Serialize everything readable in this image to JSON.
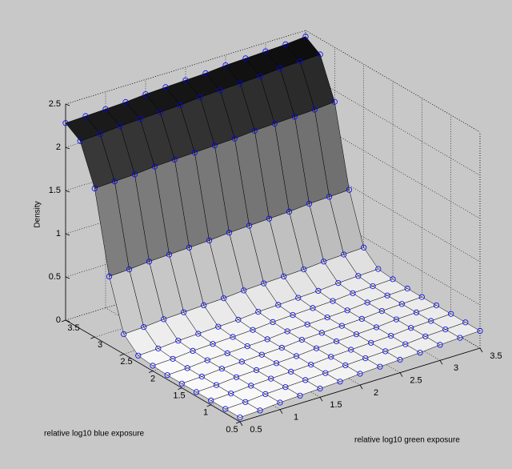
{
  "chart_data": {
    "type": "surface",
    "xlabel": "relative log10 green exposure",
    "ylabel": "relative log10 blue exposure",
    "zlabel": "Density",
    "x": [
      0.5,
      0.75,
      1,
      1.25,
      1.5,
      1.75,
      2,
      2.25,
      2.5,
      2.75,
      3,
      3.25,
      3.5
    ],
    "y": [
      0.5,
      0.75,
      1,
      1.25,
      1.5,
      1.75,
      2,
      2.25,
      2.5,
      2.75,
      3,
      3.25,
      3.5
    ],
    "z": [
      [
        0.05,
        0.06,
        0.08,
        0.09,
        0.1,
        0.11,
        0.13,
        0.14,
        0.15,
        0.16,
        0.18,
        0.19,
        0.2
      ],
      [
        0.05,
        0.06,
        0.08,
        0.09,
        0.1,
        0.11,
        0.13,
        0.14,
        0.15,
        0.16,
        0.18,
        0.19,
        0.2
      ],
      [
        0.05,
        0.06,
        0.08,
        0.09,
        0.1,
        0.11,
        0.13,
        0.14,
        0.15,
        0.16,
        0.18,
        0.19,
        0.2
      ],
      [
        0.05,
        0.06,
        0.08,
        0.09,
        0.1,
        0.11,
        0.13,
        0.14,
        0.15,
        0.16,
        0.18,
        0.19,
        0.2
      ],
      [
        0.05,
        0.06,
        0.08,
        0.09,
        0.1,
        0.11,
        0.13,
        0.14,
        0.15,
        0.16,
        0.18,
        0.19,
        0.2
      ],
      [
        0.05,
        0.06,
        0.08,
        0.09,
        0.1,
        0.11,
        0.13,
        0.14,
        0.15,
        0.16,
        0.18,
        0.19,
        0.2
      ],
      [
        0.06,
        0.07,
        0.09,
        0.1,
        0.11,
        0.12,
        0.14,
        0.15,
        0.16,
        0.17,
        0.19,
        0.2,
        0.21
      ],
      [
        0.08,
        0.09,
        0.11,
        0.12,
        0.13,
        0.14,
        0.16,
        0.17,
        0.18,
        0.19,
        0.21,
        0.22,
        0.23
      ],
      [
        0.23,
        0.24,
        0.26,
        0.27,
        0.28,
        0.29,
        0.31,
        0.32,
        0.33,
        0.34,
        0.36,
        0.37,
        0.38
      ],
      [
        0.8,
        0.81,
        0.83,
        0.84,
        0.85,
        0.86,
        0.88,
        0.89,
        0.9,
        0.91,
        0.93,
        0.94,
        0.95
      ],
      [
        1.72,
        1.73,
        1.74,
        1.76,
        1.77,
        1.78,
        1.79,
        1.8,
        1.82,
        1.83,
        1.84,
        1.85,
        1.87
      ],
      [
        2.17,
        2.18,
        2.2,
        2.21,
        2.22,
        2.23,
        2.25,
        2.26,
        2.27,
        2.28,
        2.3,
        2.31,
        2.32
      ],
      [
        2.28,
        2.29,
        2.3,
        2.31,
        2.33,
        2.34,
        2.35,
        2.36,
        2.38,
        2.39,
        2.4,
        2.41,
        2.43
      ]
    ],
    "xlim": [
      0.5,
      3.5
    ],
    "ylim": [
      0.5,
      3.5
    ],
    "zlim": [
      0,
      2.5
    ],
    "xticks": [
      0.5,
      1,
      1.5,
      2,
      2.5,
      3,
      3.5
    ],
    "yticks": [
      0.5,
      1,
      1.5,
      2,
      2.5,
      3,
      3.5
    ],
    "zticks": [
      0,
      0.5,
      1,
      1.5,
      2,
      2.5
    ],
    "grid": true,
    "colormap": [
      "#ffffff",
      "#000000"
    ],
    "edge_color": "#000000",
    "marker": "o",
    "marker_color": "#0000ff"
  }
}
